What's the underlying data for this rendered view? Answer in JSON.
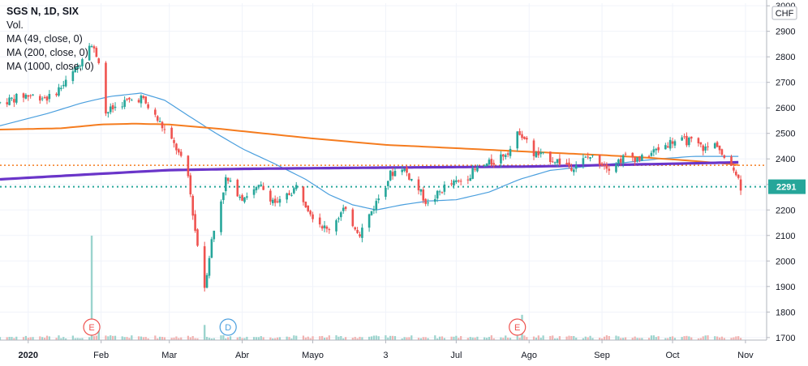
{
  "legend": {
    "title": "SGS N, 1D, SIX",
    "vol": "Vol.",
    "ma49": "MA (49, close, 0)",
    "ma200": "MA (200, close, 0)",
    "ma1000": "MA (1000, close, 0)"
  },
  "currency_label": "CHF",
  "last_price_label": "2291",
  "colors": {
    "up": "#26a69a",
    "down": "#ef5350",
    "ma49": "#4a9fde",
    "ma200": "#f57c1f",
    "ma1000": "#6a35c9",
    "last_price": "#26a69a",
    "ref_line": "#f57c1f",
    "vol_up": "#9bd4cd",
    "vol_down": "#f2b2b0",
    "event_e": "#ef5350",
    "event_d": "#4a9fde"
  },
  "events": [
    {
      "label": "E",
      "date": "2020-01-28"
    },
    {
      "label": "D",
      "date": "2020-03-26"
    },
    {
      "label": "E",
      "date": "2020-07-27"
    }
  ],
  "chart_data": {
    "type": "candlestick",
    "title": "SGS N, 1D, SIX",
    "y_axis_position": "right",
    "ylim": [
      1690,
      3010
    ],
    "y_ticks": [
      1700,
      1800,
      1900,
      2000,
      2100,
      2200,
      2300,
      2400,
      2500,
      2600,
      2700,
      2800,
      2900,
      3000
    ],
    "x_tick_labels": [
      "2020",
      "Feb",
      "Mar",
      "Abr",
      "Mayo",
      "3",
      "Jul",
      "Ago",
      "Sep",
      "Oct",
      "Nov"
    ],
    "x_tick_dates": [
      "2020-01-01",
      "2020-02-01",
      "2020-03-01",
      "2020-04-01",
      "2020-05-01",
      "2020-06-01",
      "2020-07-01",
      "2020-08-01",
      "2020-09-01",
      "2020-10-01",
      "2020-11-01"
    ],
    "x_range": [
      "2019-12-20",
      "2020-11-10"
    ],
    "last_price": 2291,
    "reference_price": 2375,
    "price_keypoints": [
      [
        "2019-12-20",
        2620
      ],
      [
        "2019-12-31",
        2650
      ],
      [
        "2020-01-10",
        2640
      ],
      [
        "2020-01-17",
        2700
      ],
      [
        "2020-01-22",
        2760
      ],
      [
        "2020-01-27",
        2860
      ],
      [
        "2020-01-31",
        2790
      ],
      [
        "2020-02-03",
        2580
      ],
      [
        "2020-02-10",
        2620
      ],
      [
        "2020-02-18",
        2640
      ],
      [
        "2020-02-26",
        2540
      ],
      [
        "2020-03-04",
        2440
      ],
      [
        "2020-03-09",
        2330
      ],
      [
        "2020-03-12",
        2120
      ],
      [
        "2020-03-16",
        1900
      ],
      [
        "2020-03-19",
        2080
      ],
      [
        "2020-03-25",
        2320
      ],
      [
        "2020-04-01",
        2250
      ],
      [
        "2020-04-09",
        2290
      ],
      [
        "2020-04-16",
        2220
      ],
      [
        "2020-04-24",
        2290
      ],
      [
        "2020-05-01",
        2180
      ],
      [
        "2020-05-07",
        2120
      ],
      [
        "2020-05-14",
        2200
      ],
      [
        "2020-05-21",
        2110
      ],
      [
        "2020-05-28",
        2230
      ],
      [
        "2020-06-03",
        2340
      ],
      [
        "2020-06-08",
        2370
      ],
      [
        "2020-06-15",
        2280
      ],
      [
        "2020-06-19",
        2220
      ],
      [
        "2020-06-26",
        2290
      ],
      [
        "2020-07-02",
        2310
      ],
      [
        "2020-07-10",
        2360
      ],
      [
        "2020-07-17",
        2390
      ],
      [
        "2020-07-24",
        2440
      ],
      [
        "2020-07-28",
        2510
      ],
      [
        "2020-08-03",
        2420
      ],
      [
        "2020-08-11",
        2400
      ],
      [
        "2020-08-19",
        2370
      ],
      [
        "2020-08-27",
        2410
      ],
      [
        "2020-09-04",
        2370
      ],
      [
        "2020-09-11",
        2410
      ],
      [
        "2020-09-18",
        2400
      ],
      [
        "2020-09-25",
        2440
      ],
      [
        "2020-10-01",
        2470
      ],
      [
        "2020-10-08",
        2470
      ],
      [
        "2020-10-15",
        2440
      ],
      [
        "2020-10-20",
        2460
      ],
      [
        "2020-10-23",
        2390
      ],
      [
        "2020-10-27",
        2370
      ],
      [
        "2020-10-29",
        2320
      ],
      [
        "2020-10-30",
        2291
      ]
    ],
    "ma49_keypoints": [
      [
        "2019-12-20",
        2530
      ],
      [
        "2020-01-10",
        2580
      ],
      [
        "2020-01-24",
        2620
      ],
      [
        "2020-02-05",
        2645
      ],
      [
        "2020-02-18",
        2658
      ],
      [
        "2020-02-28",
        2630
      ],
      [
        "2020-03-09",
        2570
      ],
      [
        "2020-03-20",
        2505
      ],
      [
        "2020-04-01",
        2440
      ],
      [
        "2020-04-15",
        2380
      ],
      [
        "2020-04-28",
        2320
      ],
      [
        "2020-05-08",
        2260
      ],
      [
        "2020-05-18",
        2220
      ],
      [
        "2020-05-28",
        2200
      ],
      [
        "2020-06-08",
        2220
      ],
      [
        "2020-06-19",
        2235
      ],
      [
        "2020-07-01",
        2240
      ],
      [
        "2020-07-15",
        2270
      ],
      [
        "2020-07-28",
        2320
      ],
      [
        "2020-08-10",
        2355
      ],
      [
        "2020-08-25",
        2370
      ],
      [
        "2020-09-10",
        2385
      ],
      [
        "2020-09-25",
        2400
      ],
      [
        "2020-10-10",
        2410
      ],
      [
        "2020-10-30",
        2410
      ]
    ],
    "ma200_keypoints": [
      [
        "2019-12-20",
        2515
      ],
      [
        "2020-01-15",
        2520
      ],
      [
        "2020-02-01",
        2535
      ],
      [
        "2020-02-15",
        2538
      ],
      [
        "2020-03-01",
        2535
      ],
      [
        "2020-03-20",
        2520
      ],
      [
        "2020-04-10",
        2500
      ],
      [
        "2020-05-01",
        2480
      ],
      [
        "2020-06-01",
        2455
      ],
      [
        "2020-07-01",
        2442
      ],
      [
        "2020-08-01",
        2428
      ],
      [
        "2020-09-01",
        2415
      ],
      [
        "2020-09-20",
        2405
      ],
      [
        "2020-10-10",
        2392
      ],
      [
        "2020-10-25",
        2380
      ],
      [
        "2020-10-30",
        2375
      ]
    ],
    "ma1000_keypoints": [
      [
        "2019-12-20",
        2320
      ],
      [
        "2020-02-01",
        2342
      ],
      [
        "2020-03-01",
        2356
      ],
      [
        "2020-04-01",
        2361
      ],
      [
        "2020-06-01",
        2366
      ],
      [
        "2020-08-01",
        2370
      ],
      [
        "2020-10-01",
        2381
      ],
      [
        "2020-10-30",
        2387
      ]
    ],
    "volume_spikes": [
      [
        "2020-01-28",
        0.31
      ],
      [
        "2020-01-31",
        0.05
      ],
      [
        "2020-03-16",
        0.045
      ],
      [
        "2020-07-29",
        0.075
      ]
    ]
  }
}
